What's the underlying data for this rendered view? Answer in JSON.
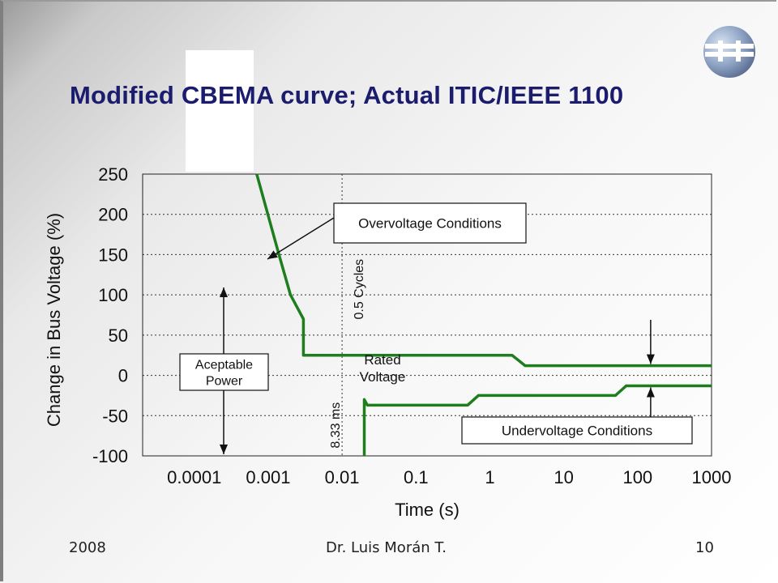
{
  "slide": {
    "title": "Modified CBEMA curve; Actual ITIC/IEEE 1100",
    "footer_left": "2008",
    "footer_center": "Dr. Luis Morán T.",
    "footer_right": "10",
    "colors": {
      "title": "#1b1c6e",
      "curve": "#1e7e1e",
      "text": "#111111"
    },
    "logo": "DIE-globe-logo"
  },
  "chart_data": {
    "type": "line",
    "xlabel": "Time (s)",
    "ylabel": "Change in Bus Voltage (%)",
    "x_scale": "log",
    "xlim": [
      2e-05,
      1000
    ],
    "ylim": [
      -100,
      250
    ],
    "x_ticks": [
      {
        "value": 0.0001,
        "label": "0.0001"
      },
      {
        "value": 0.001,
        "label": "0.001"
      },
      {
        "value": 0.01,
        "label": "0.01"
      },
      {
        "value": 0.1,
        "label": "0.1"
      },
      {
        "value": 1,
        "label": "1"
      },
      {
        "value": 10,
        "label": "10"
      },
      {
        "value": 100,
        "label": "100"
      },
      {
        "value": 1000,
        "label": "1000"
      }
    ],
    "y_ticks": [
      {
        "value": 250,
        "label": "250"
      },
      {
        "value": 200,
        "label": "200"
      },
      {
        "value": 150,
        "label": "150"
      },
      {
        "value": 100,
        "label": "100"
      },
      {
        "value": 50,
        "label": "50"
      },
      {
        "value": 0,
        "label": "0"
      },
      {
        "value": -50,
        "label": "-50"
      },
      {
        "value": -100,
        "label": "-100"
      }
    ],
    "grid": "dotted horizontal lines",
    "series": [
      {
        "color": "#1e7e1e",
        "x": [
          0.0007,
          0.0014,
          0.002,
          0.003,
          0.003,
          2,
          3,
          1000
        ],
        "y": [
          250,
          150,
          100,
          70,
          25,
          25,
          12,
          12
        ]
      },
      {
        "color": "#1e7e1e",
        "x": [
          0.02,
          0.02,
          0.022,
          0.5,
          0.7,
          50,
          70,
          1000
        ],
        "y": [
          -105,
          -30,
          -37,
          -37,
          -25,
          -25,
          -13,
          -13
        ]
      }
    ],
    "vertical_markers": [
      {
        "x": 0.01,
        "label": "0.5 Cycles"
      },
      {
        "x": 0.00833,
        "label": "8.33 ms"
      }
    ],
    "annotations": [
      {
        "text": "Overvoltage Conditions",
        "boxed": true
      },
      {
        "text": "Aceptable\nPower",
        "boxed": true
      },
      {
        "text": "Rated\nVoltage",
        "boxed": false
      },
      {
        "text": "Undervoltage Conditions",
        "boxed": true
      }
    ]
  }
}
